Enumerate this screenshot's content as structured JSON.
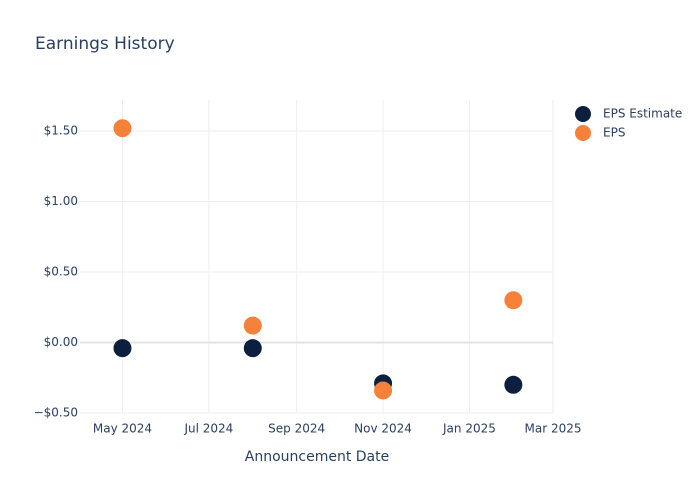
{
  "chart_data": {
    "type": "scatter",
    "title": "Earnings History",
    "x_label": "Announcement Date",
    "x": [
      "2024-05",
      "2024-08",
      "2024-11",
      "2025-02"
    ],
    "series": [
      {
        "name": "EPS Estimate",
        "color": "#0c1f3e",
        "values": [
          -0.04,
          -0.04,
          -0.29,
          -0.3
        ]
      },
      {
        "name": "EPS",
        "color": "#f5813a",
        "values": [
          1.52,
          0.12,
          -0.34,
          0.3
        ]
      }
    ],
    "xlim": [
      "2024-04",
      "2025-03"
    ],
    "xticks": [
      {
        "value": "2024-05",
        "label": "May 2024"
      },
      {
        "value": "2024-07",
        "label": "Jul 2024"
      },
      {
        "value": "2024-09",
        "label": "Sep 2024"
      },
      {
        "value": "2024-11",
        "label": "Nov 2024"
      },
      {
        "value": "2025-01",
        "label": "Jan 2025"
      },
      {
        "value": "2025-03",
        "label": "Mar 2025"
      }
    ],
    "ylim": [
      -0.5,
      1.72
    ],
    "yticks": [
      {
        "value": -0.5,
        "label": "−$0.50"
      },
      {
        "value": 0,
        "label": "$0.00"
      },
      {
        "value": 0.5,
        "label": "$0.50"
      },
      {
        "value": 1,
        "label": "$1.00"
      },
      {
        "value": 1.5,
        "label": "$1.50"
      }
    ],
    "grid": true,
    "legend": "top-right"
  }
}
